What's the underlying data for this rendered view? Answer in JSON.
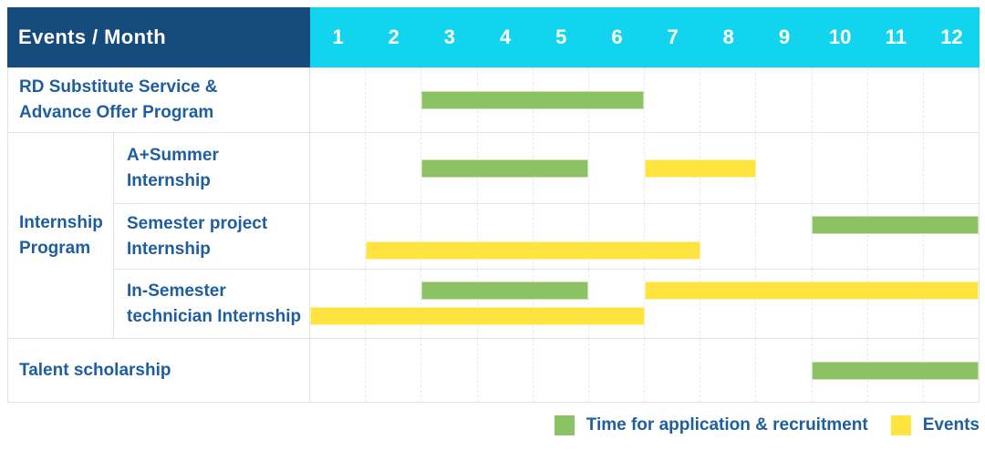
{
  "colors": {
    "header_bg": "#154A7D",
    "months_bg": "#12D4EE",
    "text_blue": "#1F5E9E",
    "green": "#8CC264",
    "green_edge": "#C9E4B0",
    "yellow": "#FFE33E",
    "yellow_edge": "#FFF2A6",
    "grid": "#E3E3E3"
  },
  "header": {
    "title": "Events / Month"
  },
  "legend": {
    "items": [
      {
        "label": "Time for application & recruitment",
        "color_key": "green"
      },
      {
        "label": "Events",
        "color_key": "yellow"
      }
    ]
  },
  "chart_data": {
    "type": "gantt",
    "unit": "month",
    "x_range": [
      1,
      12
    ],
    "months": [
      "1",
      "2",
      "3",
      "4",
      "5",
      "6",
      "7",
      "8",
      "9",
      "10",
      "11",
      "12"
    ],
    "bar_types": {
      "application": {
        "meaning": "Time for application & recruitment",
        "color_key": "green"
      },
      "event": {
        "meaning": "Events",
        "color_key": "yellow"
      }
    },
    "rows": [
      {
        "group": "",
        "label": "RD Substitute Service & Advance Offer Program",
        "label_display": "RD Substitute Service &\nAdvance Offer Program",
        "bars": [
          {
            "type": "application",
            "start": 3,
            "end": 6,
            "lane": "center"
          }
        ]
      },
      {
        "group": "Internship Program",
        "group_display": "Internship\nProgram",
        "label": "A+Summer Internship",
        "label_display": "A+Summer\nInternship",
        "bars": [
          {
            "type": "application",
            "start": 3,
            "end": 5,
            "lane": "center"
          },
          {
            "type": "event",
            "start": 7,
            "end": 8,
            "lane": "center"
          }
        ]
      },
      {
        "group": "Internship Program",
        "label": "Semester project Internship",
        "label_display": "Semester project\nInternship",
        "bars": [
          {
            "type": "application",
            "start": 10,
            "end": 12,
            "lane": "top"
          },
          {
            "type": "event",
            "start": 2,
            "end": 7,
            "lane": "bottom"
          }
        ]
      },
      {
        "group": "Internship Program",
        "label": "In-Semester technician Internship",
        "label_display": "In-Semester\ntechnician Internship",
        "bars": [
          {
            "type": "application",
            "start": 3,
            "end": 5,
            "lane": "top"
          },
          {
            "type": "event",
            "start": 7,
            "end": 12,
            "lane": "top"
          },
          {
            "type": "event",
            "start": 1,
            "end": 6,
            "lane": "bottom"
          }
        ]
      },
      {
        "group": "",
        "label": "Talent scholarship",
        "label_display": "Talent scholarship",
        "bars": [
          {
            "type": "application",
            "start": 10,
            "end": 12,
            "lane": "center"
          }
        ]
      }
    ]
  }
}
